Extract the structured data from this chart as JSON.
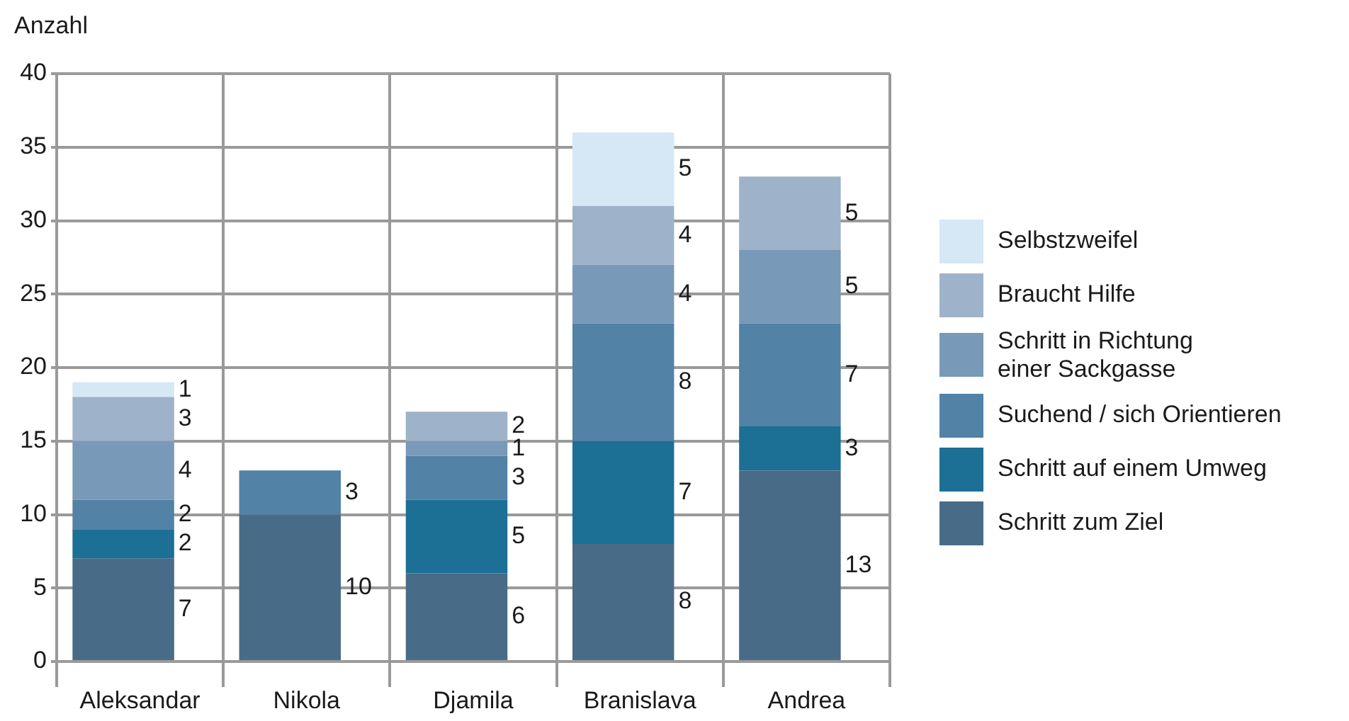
{
  "chart_data": {
    "type": "bar",
    "stacked": true,
    "ylabel": "Anzahl",
    "categories": [
      "Aleksandar",
      "Nikola",
      "Djamila",
      "Branislava",
      "Andrea"
    ],
    "series": [
      {
        "name": "Schritt zum Ziel",
        "color": "#486b88",
        "values": [
          7,
          10,
          6,
          8,
          13
        ]
      },
      {
        "name": "Schritt auf einem Umweg",
        "color": "#1c6f95",
        "values": [
          2,
          null,
          5,
          7,
          3
        ]
      },
      {
        "name": "Suchend / sich Orientieren",
        "color": "#5282a6",
        "values": [
          2,
          3,
          3,
          8,
          7
        ]
      },
      {
        "name": "Schritt in Richtung\neiner Sackgasse",
        "color": "#7899b7",
        "values": [
          4,
          null,
          1,
          4,
          5
        ]
      },
      {
        "name": "Braucht Hilfe",
        "color": "#9eb3c9",
        "values": [
          3,
          null,
          2,
          4,
          5
        ]
      },
      {
        "name": "Selbstzweifel",
        "color": "#d6e7f6",
        "values": [
          1,
          null,
          null,
          5,
          null
        ]
      }
    ],
    "ylim": [
      0,
      40
    ],
    "yticks": [
      0,
      5,
      10,
      15,
      20,
      25,
      30,
      35,
      40
    ],
    "grid": true,
    "legend": "right",
    "data_labels": true
  }
}
